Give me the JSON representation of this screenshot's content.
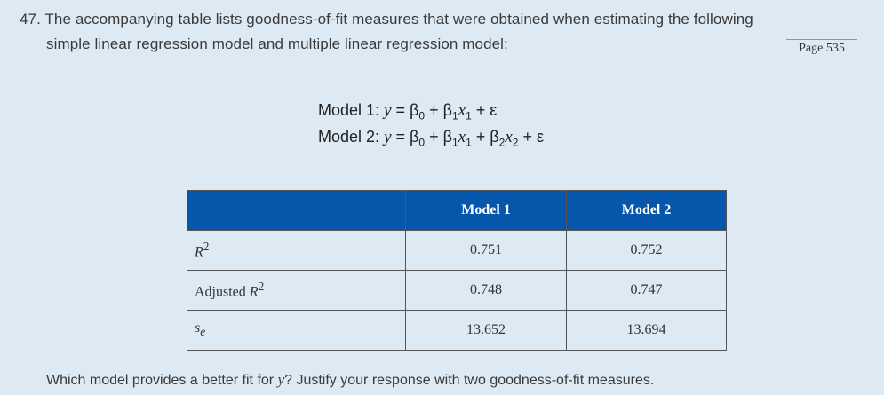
{
  "problem": {
    "line1": "47. The accompanying table lists goodness-of-fit measures that were obtained when estimating the following",
    "line2": "simple linear regression model and multiple linear regression model:",
    "page_ref": "Page 535"
  },
  "equations": {
    "model1_label": "Model 1",
    "model2_label": "Model 2",
    "model1_rhs": "β₀ + β₁x₁ + ε",
    "model2_rhs": "β₀ + β₁x₁ + β₂x₂ + ε"
  },
  "table": {
    "headers": [
      "",
      "Model 1",
      "Model 2"
    ],
    "rows": [
      {
        "label_main": "R",
        "label_sup": "2",
        "label_prefix": "",
        "m1": "0.751",
        "m2": "0.752"
      },
      {
        "label_prefix": "Adjusted ",
        "label_main": "R",
        "label_sup": "2",
        "m1": "0.748",
        "m2": "0.747"
      },
      {
        "label_main": "s",
        "label_sub": "e",
        "m1": "13.652",
        "m2": "13.694"
      }
    ]
  },
  "footer": {
    "question_pre": "Which model provides a better fit for ",
    "question_var": "y",
    "question_post": "? Justify your response with two goodness-of-fit measures."
  }
}
